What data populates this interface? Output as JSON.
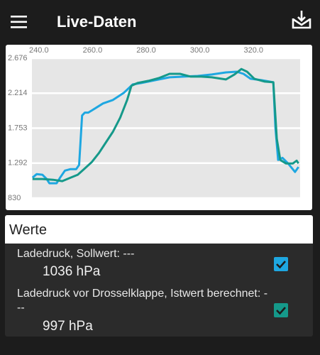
{
  "app_bar": {
    "title": "Live-Daten"
  },
  "chart_data": {
    "type": "line",
    "xlim": [
      237.4,
      337.4
    ],
    "xticks": [
      {
        "value": 240,
        "label": "240.0"
      },
      {
        "value": 260,
        "label": "260.0"
      },
      {
        "value": 280,
        "label": "280.0"
      },
      {
        "value": 300,
        "label": "300.0"
      },
      {
        "value": 320,
        "label": "320.0"
      }
    ],
    "ylim": [
      830,
      2676
    ],
    "yticks": [
      830,
      {
        "value": 1292,
        "label": "1.292"
      },
      {
        "value": 1753,
        "label": "1.753"
      },
      {
        "value": 2214,
        "label": "2.214"
      },
      {
        "value": 2676,
        "label": "2.676"
      }
    ],
    "grid": true,
    "series": [
      {
        "color": "#1ea7e1",
        "x": [
          237.6,
          239.2,
          241.3,
          242.9,
          243.9,
          246.6,
          247.9,
          249.7,
          251.8,
          253.9,
          255.0,
          256.1,
          257.1,
          258.4,
          259.7,
          261.8,
          263.9,
          267.6,
          271.6,
          275.0,
          278.2,
          283.4,
          288.7,
          293.9,
          299.2,
          304.5,
          309.7,
          313.7,
          316.3,
          318.9,
          322.9,
          327.4,
          328.2,
          329.2,
          330.8,
          332.9,
          335.5,
          336.8
        ],
        "values": [
          1100,
          1147,
          1138,
          1082,
          1026,
          1026,
          1100,
          1193,
          1212,
          1212,
          1268,
          1920,
          1958,
          1958,
          1986,
          2032,
          2079,
          2125,
          2218,
          2330,
          2349,
          2386,
          2424,
          2433,
          2442,
          2461,
          2489,
          2498,
          2470,
          2405,
          2386,
          2358,
          1753,
          1333,
          1361,
          1287,
          1175,
          1240
        ]
      },
      {
        "color": "#15998a",
        "x": [
          237.6,
          241.3,
          245.3,
          248.7,
          251.8,
          254.5,
          257.1,
          259.7,
          262.4,
          265.0,
          267.6,
          270.3,
          272.9,
          274.5,
          276.8,
          280.8,
          284.7,
          288.7,
          292.6,
          296.6,
          300.5,
          304.5,
          309.7,
          312.9,
          315.5,
          317.6,
          320.3,
          324.2,
          327.4,
          328.7,
          330.0,
          332.1,
          334.7,
          336.1,
          336.8
        ],
        "values": [
          1082,
          1082,
          1072,
          1054,
          1100,
          1138,
          1221,
          1305,
          1426,
          1566,
          1706,
          1892,
          2125,
          2312,
          2349,
          2377,
          2414,
          2470,
          2470,
          2433,
          2433,
          2424,
          2396,
          2461,
          2534,
          2498,
          2405,
          2368,
          2358,
          1613,
          1333,
          1287,
          1287,
          1324,
          1287
        ]
      }
    ]
  },
  "werte": {
    "title": "Werte",
    "items": [
      {
        "label": "Ladedruck, Sollwert: ---",
        "reading": "1036 hPa",
        "checked": true
      },
      {
        "label": "Ladedruck vor Drosselklappe, Istwert berechnet: ---",
        "reading": "997 hPa",
        "checked": true
      }
    ]
  }
}
